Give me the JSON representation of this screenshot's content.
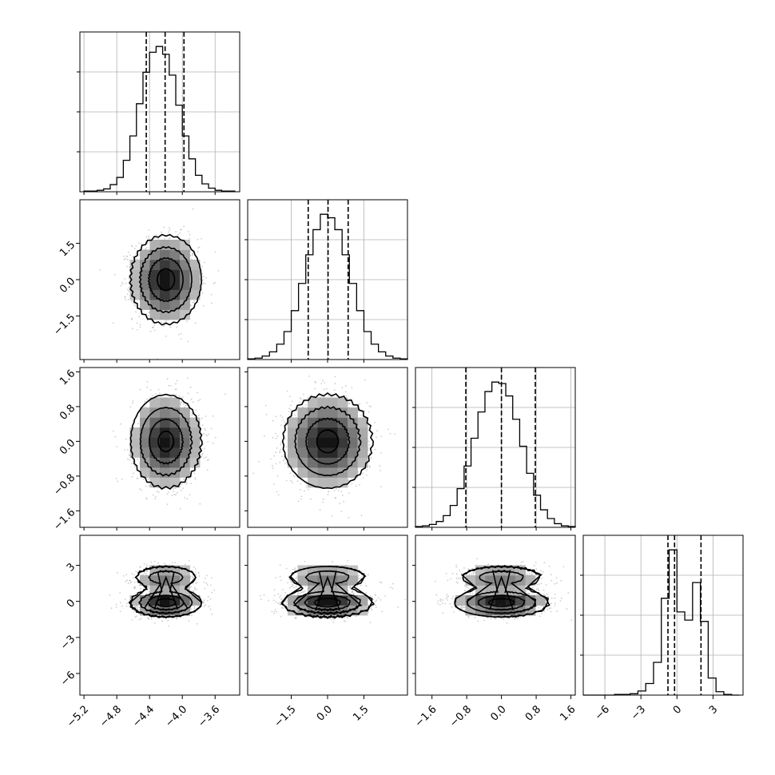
{
  "chart_data": {
    "type": "corner",
    "title": "",
    "parameters": [
      {
        "ticks": [
          -5.2,
          -4.8,
          -4.4,
          -4.0,
          -3.6
        ],
        "tick_labels": [
          "−5.2",
          "−4.8",
          "−4.4",
          "−4.0",
          "−3.6"
        ],
        "range": [
          -5.25,
          -3.3
        ],
        "mean": -4.2,
        "sd": 0.2,
        "quantiles": [
          -4.44,
          -4.21,
          -3.98
        ]
      },
      {
        "ticks": [
          -1.5,
          0.0,
          1.5
        ],
        "tick_labels": [
          "−1.5",
          "0.0",
          "1.5"
        ],
        "range": [
          -3.3,
          3.3
        ],
        "mean": 0.0,
        "sd": 0.85,
        "quantiles": [
          -0.8,
          0.02,
          0.85
        ]
      },
      {
        "ticks": [
          -1.6,
          -0.8,
          0.0,
          0.8,
          1.6
        ],
        "tick_labels": [
          "−1.6",
          "−0.8",
          "0.0",
          "0.8",
          "1.6"
        ],
        "range": [
          -1.98,
          1.7
        ],
        "mean": 0.0,
        "sd": 0.5,
        "quantiles": [
          -0.82,
          0.0,
          0.78
        ]
      },
      {
        "ticks": [
          -6,
          -3,
          0,
          3
        ],
        "tick_labels": [
          "−6",
          "−3",
          "0",
          "3"
        ],
        "range": [
          -7.8,
          5.5
        ],
        "mixture": [
          {
            "weight": 0.7,
            "mean": -0.1,
            "sd": 0.55
          },
          {
            "weight": 0.3,
            "mean": 2.0,
            "sd": 0.5
          }
        ],
        "quantiles": [
          -0.75,
          -0.2,
          2.0
        ]
      }
    ],
    "histograms": [
      {
        "param": 0,
        "bin_width": 0.08,
        "bins": [
          -5.2,
          -5.12,
          -5.04,
          -4.96,
          -4.88,
          -4.8,
          -4.72,
          -4.64,
          -4.56,
          -4.48,
          -4.4,
          -4.32,
          -4.24,
          -4.16,
          -4.08,
          -4.0,
          -3.92,
          -3.84,
          -3.76,
          -3.68,
          -3.6,
          -3.52,
          -3.44
        ],
        "counts": [
          1,
          1,
          2,
          4,
          10,
          20,
          44,
          78,
          123,
          167,
          195,
          203,
          192,
          163,
          121,
          78,
          46,
          23,
          11,
          5,
          2,
          1,
          1
        ]
      },
      {
        "param": 1,
        "bin_width": 0.3,
        "bins": [
          -3.3,
          -3.0,
          -2.7,
          -2.4,
          -2.1,
          -1.8,
          -1.5,
          -1.2,
          -0.9,
          -0.6,
          -0.3,
          0.0,
          0.3,
          0.6,
          0.9,
          1.2,
          1.5,
          1.8,
          2.1,
          2.4,
          2.7,
          3.0
        ],
        "counts": [
          1,
          2,
          5,
          11,
          22,
          40,
          70,
          109,
          150,
          186,
          208,
          203,
          186,
          150,
          109,
          70,
          40,
          22,
          11,
          5,
          2,
          1
        ]
      },
      {
        "param": 2,
        "bin_width": 0.16,
        "bins": [
          -1.98,
          -1.82,
          -1.66,
          -1.5,
          -1.34,
          -1.18,
          -1.02,
          -0.86,
          -0.7,
          -0.54,
          -0.38,
          -0.22,
          -0.06,
          0.1,
          0.26,
          0.42,
          0.58,
          0.74,
          0.9,
          1.06,
          1.22,
          1.38,
          1.54
        ],
        "counts": [
          1,
          2,
          4,
          8,
          16,
          30,
          53,
          84,
          122,
          158,
          186,
          199,
          197,
          180,
          148,
          111,
          74,
          44,
          24,
          12,
          5,
          2,
          1
        ]
      },
      {
        "param": 3,
        "bin_width": 0.65,
        "bins": [
          -7.8,
          -7.15,
          -6.5,
          -5.85,
          -5.2,
          -4.55,
          -3.9,
          -3.25,
          -2.6,
          -1.95,
          -1.3,
          -0.65,
          0.0,
          0.65,
          1.3,
          1.95,
          2.6,
          3.25,
          3.9,
          4.55
        ],
        "counts": [
          0,
          0,
          0,
          0,
          1,
          1,
          2,
          6,
          17,
          48,
          142,
          213,
          122,
          110,
          165,
          108,
          25,
          5,
          1,
          0
        ]
      }
    ],
    "scatter_pairs": [
      {
        "x_param": 0,
        "y_param": 1
      },
      {
        "x_param": 0,
        "y_param": 2
      },
      {
        "x_param": 1,
        "y_param": 2
      },
      {
        "x_param": 0,
        "y_param": 3
      },
      {
        "x_param": 1,
        "y_param": 3
      },
      {
        "x_param": 2,
        "y_param": 3
      }
    ],
    "contour_levels": 4,
    "grid": true
  }
}
